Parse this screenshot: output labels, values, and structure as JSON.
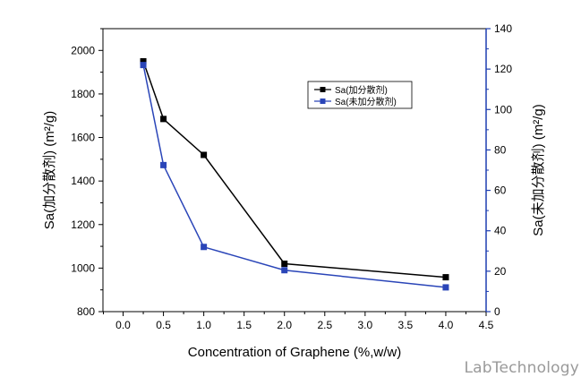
{
  "chart_data": {
    "type": "line",
    "xlabel": "Concentration of Graphene (%,w/w)",
    "ylabel_left": "Sa(加分散剂) (m²/g)",
    "ylabel_right": "Sa(未加分散剂) (m²/g)",
    "xlim": [
      -0.25,
      4.5
    ],
    "x_ticks": [
      "0.0",
      "0.5",
      "1.0",
      "1.5",
      "2.0",
      "2.5",
      "3.0",
      "3.5",
      "4.0",
      "4.5"
    ],
    "ylim_left": [
      800,
      2100
    ],
    "y_ticks_left": [
      "800",
      "1000",
      "1200",
      "1400",
      "1600",
      "1800",
      "2000"
    ],
    "ylim_right": [
      0,
      140
    ],
    "y_ticks_right": [
      "0",
      "20",
      "40",
      "60",
      "80",
      "100",
      "120",
      "140"
    ],
    "legend_position": "top-right",
    "series": [
      {
        "name": "Sa(加分散剂)",
        "axis": "left",
        "color": "#000000",
        "marker": "square",
        "x": [
          0.25,
          0.5,
          1.0,
          2.0,
          4.0
        ],
        "y": [
          1950,
          1685,
          1520,
          1020,
          958
        ]
      },
      {
        "name": "Sa(未加分散剂)",
        "axis": "right",
        "color": "#2a45b8",
        "marker": "square",
        "x": [
          0.25,
          0.5,
          1.0,
          2.0,
          4.0
        ],
        "y": [
          122,
          72.5,
          32,
          20.5,
          12
        ]
      }
    ]
  },
  "watermark": "LabTechnology"
}
